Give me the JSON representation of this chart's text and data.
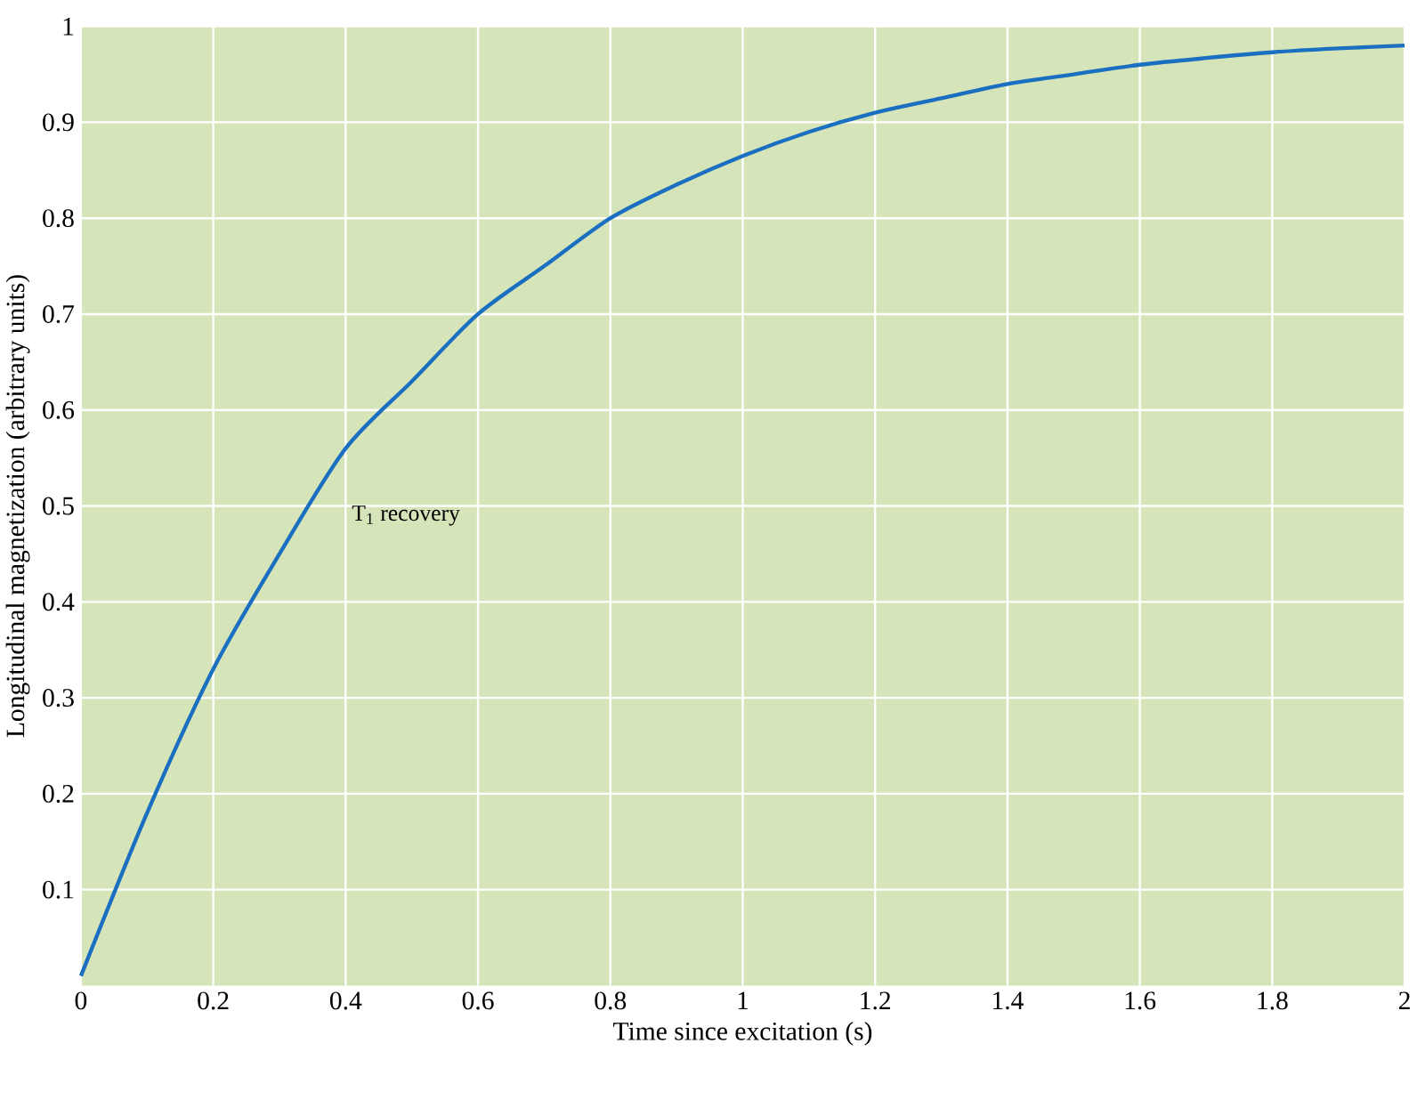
{
  "chart_data": {
    "type": "line",
    "xlabel": "Time since excitation (s)",
    "ylabel": "Longitudinal magnetization (arbitrary units)",
    "x": [
      0,
      0.1,
      0.2,
      0.3,
      0.4,
      0.5,
      0.6,
      0.7,
      0.8,
      0.9,
      1,
      1.1,
      1.2,
      1.3,
      1.4,
      1.5,
      1.6,
      1.7,
      1.8,
      1.9,
      2
    ],
    "series": [
      {
        "color": "#1a6fc0",
        "values": [
          0.01,
          0.18,
          0.33,
          0.45,
          0.56,
          0.63,
          0.7,
          0.75,
          0.8,
          0.835,
          0.865,
          0.89,
          0.91,
          0.925,
          0.94,
          0.95,
          0.96,
          0.967,
          0.973,
          0.977,
          0.98
        ]
      }
    ],
    "annotations": [
      "T$_{1}$ recovery"
    ],
    "xlim": [
      0,
      2
    ],
    "ylim": [
      0,
      1
    ],
    "xticks": [
      0,
      0.2,
      0.4,
      0.6,
      0.8,
      1,
      1.2,
      1.4,
      1.6,
      1.8,
      2
    ],
    "yticks": [
      0.1,
      0.2,
      0.3,
      0.4,
      0.5,
      0.6,
      0.7,
      0.8,
      0.9,
      1
    ],
    "grid": true,
    "marker": "none",
    "line_style": "solid"
  }
}
